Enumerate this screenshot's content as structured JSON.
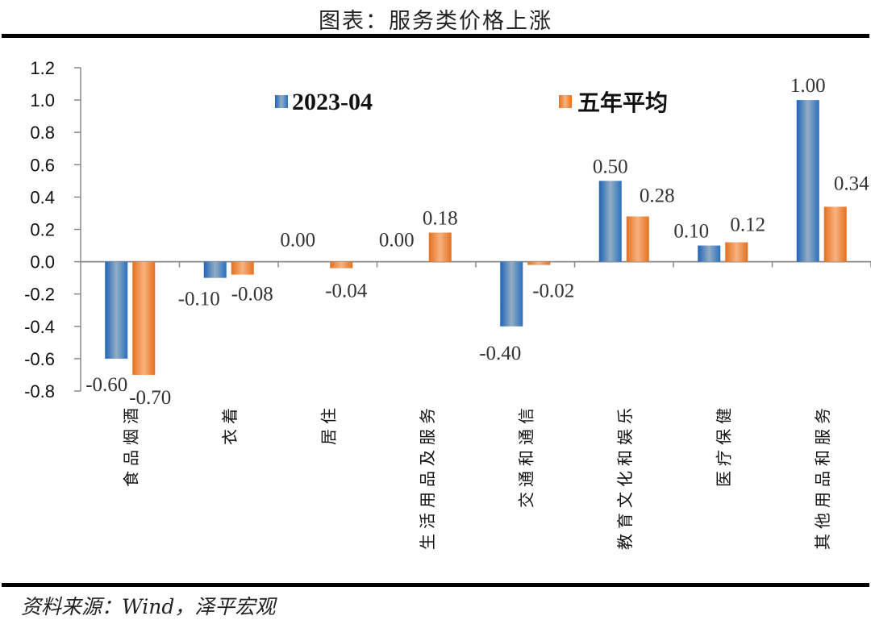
{
  "header": {
    "title": "图表：服务类价格上涨"
  },
  "footer": {
    "source": "资料来源：Wind，泽平宏观"
  },
  "colors": {
    "series_a": "#2e6fbf",
    "series_b": "#ea7a2c",
    "axis": "#888888"
  },
  "chart_data": {
    "type": "bar",
    "title": "图表：服务类价格上涨",
    "xlabel": "",
    "ylabel": "",
    "ylim": [
      -0.8,
      1.2
    ],
    "yticks": [
      "1.2",
      "1.0",
      "0.8",
      "0.6",
      "0.4",
      "0.2",
      "0.0",
      "-0.2",
      "-0.4",
      "-0.6",
      "-0.8"
    ],
    "ytick_values": [
      1.2,
      1.0,
      0.8,
      0.6,
      0.4,
      0.2,
      0.0,
      -0.2,
      -0.4,
      -0.6,
      -0.8
    ],
    "grid": false,
    "legend_position": "top",
    "categories": [
      "食品烟酒",
      "衣着",
      "居住",
      "生活用品及服务",
      "交通和通信",
      "教育文化和娱乐",
      "医疗保健",
      "其他用品和服务"
    ],
    "series": [
      {
        "name": "2023-04",
        "values": [
          -0.6,
          -0.1,
          0.0,
          0.0,
          -0.4,
          0.5,
          0.1,
          1.0
        ],
        "labels": [
          "-0.60",
          "-0.10",
          "0.00",
          "0.00",
          "-0.40",
          "0.50",
          "0.10",
          "1.00"
        ]
      },
      {
        "name": "五年平均",
        "values": [
          -0.7,
          -0.08,
          -0.04,
          0.18,
          -0.02,
          0.28,
          0.12,
          0.34
        ],
        "labels": [
          "-0.70",
          "-0.08",
          "-0.04",
          "0.18",
          "-0.02",
          "0.28",
          "0.12",
          "0.34"
        ]
      }
    ]
  }
}
